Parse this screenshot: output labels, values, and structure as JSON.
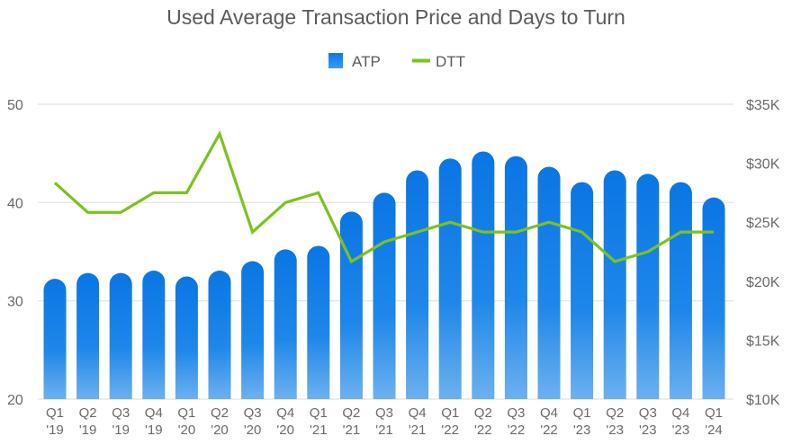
{
  "chart_data": {
    "type": "bar+line",
    "title": "Used Average Transaction Price and Days to Turn",
    "legend": {
      "position": "top-center",
      "items": [
        {
          "name": "ATP",
          "type": "bar",
          "color": "#0a7ae6"
        },
        {
          "name": "DTT",
          "type": "line",
          "color": "#7cc21e"
        }
      ]
    },
    "categories": [
      {
        "q": "Q1",
        "y": "'19"
      },
      {
        "q": "Q2",
        "y": "'19"
      },
      {
        "q": "Q3",
        "y": "'19"
      },
      {
        "q": "Q4",
        "y": "'19"
      },
      {
        "q": "Q1",
        "y": "'20"
      },
      {
        "q": "Q2",
        "y": "'20"
      },
      {
        "q": "Q3",
        "y": "'20"
      },
      {
        "q": "Q4",
        "y": "'20"
      },
      {
        "q": "Q1",
        "y": "'21"
      },
      {
        "q": "Q2",
        "y": "'21"
      },
      {
        "q": "Q3",
        "y": "'21"
      },
      {
        "q": "Q4",
        "y": "'21"
      },
      {
        "q": "Q1",
        "y": "'22"
      },
      {
        "q": "Q2",
        "y": "'22"
      },
      {
        "q": "Q3",
        "y": "'22"
      },
      {
        "q": "Q4",
        "y": "'22"
      },
      {
        "q": "Q1",
        "y": "'23"
      },
      {
        "q": "Q2",
        "y": "'23"
      },
      {
        "q": "Q3",
        "y": "'23"
      },
      {
        "q": "Q4",
        "y": "'23"
      },
      {
        "q": "Q1",
        "y": "'24"
      }
    ],
    "series": [
      {
        "name": "ATP",
        "type": "bar",
        "axis": "right",
        "unit": "USD",
        "values": [
          20200,
          20700,
          20700,
          20900,
          20400,
          20900,
          21700,
          22700,
          23000,
          25900,
          27500,
          29400,
          30400,
          31000,
          30600,
          29700,
          28400,
          29400,
          29100,
          28400,
          27100
        ]
      },
      {
        "name": "DTT",
        "type": "line",
        "axis": "left",
        "unit": "days",
        "values": [
          42,
          39,
          39,
          41,
          41,
          47,
          37,
          40,
          41,
          34,
          36,
          37,
          38,
          37,
          37,
          38,
          37,
          34,
          35,
          37,
          37
        ]
      }
    ],
    "left_axis": {
      "range": [
        20,
        50
      ],
      "ticks": [
        {
          "value": 50,
          "label": "50"
        },
        {
          "value": 40,
          "label": "40"
        },
        {
          "value": 30,
          "label": "30"
        },
        {
          "value": 20,
          "label": "20"
        }
      ]
    },
    "right_axis": {
      "range": [
        10000,
        35000
      ],
      "ticks": [
        {
          "value": 35000,
          "label": "$35K"
        },
        {
          "value": 30000,
          "label": "$30K"
        },
        {
          "value": 25000,
          "label": "$25K"
        },
        {
          "value": 20000,
          "label": "$20K"
        },
        {
          "value": 15000,
          "label": "$15K"
        },
        {
          "value": 10000,
          "label": "$10K"
        }
      ]
    },
    "grid": true,
    "colors": {
      "bar_top": "#0a76e4",
      "bar_bottom": "#6cb1ee",
      "line": "#7cc21e",
      "grid": "#e2e2e2",
      "text": "#5b5b5b"
    }
  }
}
